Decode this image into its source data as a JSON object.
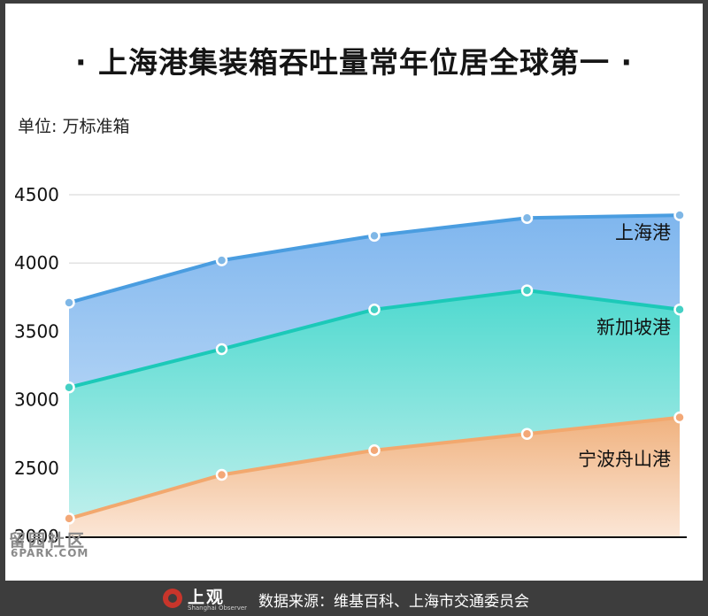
{
  "header": {
    "title": "· 上海港集装箱吞吐量常年位居全球第一 ·",
    "unit": "单位: 万标准箱"
  },
  "footer": {
    "logo_text": "上观",
    "logo_sub": "Shanghai Observer",
    "source": "数据来源：维基百科、上海市交通委员会"
  },
  "watermark": {
    "cn": "留园社区",
    "en": "6PARK.COM"
  },
  "colors": {
    "shanghai_line": "#4a9de0",
    "singapore_line": "#1cc9b8",
    "ningbo_line": "#f2a86e"
  },
  "chart_data": {
    "type": "area",
    "title": "",
    "xlabel": "",
    "ylabel": "",
    "x": [
      "",
      "",
      "",
      "",
      ""
    ],
    "ylim": [
      2000,
      4500
    ],
    "yticks": [
      2000,
      2500,
      3000,
      3500,
      4000,
      4500
    ],
    "grid": true,
    "series": [
      {
        "name": "上海港",
        "values": [
          3710,
          4020,
          4200,
          4330,
          4350
        ]
      },
      {
        "name": "新加坡港",
        "values": [
          3090,
          3370,
          3660,
          3800,
          3660
        ]
      },
      {
        "name": "宁波舟山港",
        "values": [
          2130,
          2450,
          2630,
          2750,
          2870
        ]
      }
    ]
  }
}
